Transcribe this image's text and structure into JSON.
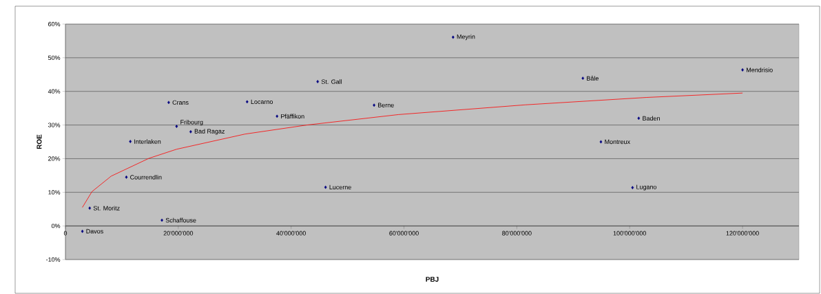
{
  "chart_data": {
    "type": "scatter",
    "xlabel": "PBJ",
    "ylabel": "ROE",
    "xlim": [
      0,
      130000000
    ],
    "ylim": [
      -10,
      60
    ],
    "xticks": [
      0,
      {
        "value": 20000000,
        "label": "20'000'000"
      },
      {
        "value": 40000000,
        "label": "40'000'000"
      },
      {
        "value": 60000000,
        "label": "60'000'000"
      },
      {
        "value": 80000000,
        "label": "80'000'000"
      },
      {
        "value": 100000000,
        "label": "100'000'000"
      },
      {
        "value": 120000000,
        "label": "120'000'000"
      }
    ],
    "yticks": [
      {
        "value": -10,
        "label": "-10%"
      },
      {
        "value": 0,
        "label": "0%"
      },
      {
        "value": 10,
        "label": "10%"
      },
      {
        "value": 20,
        "label": "20%"
      },
      {
        "value": 30,
        "label": "30%"
      },
      {
        "value": 40,
        "label": "40%"
      },
      {
        "value": 50,
        "label": "50%"
      },
      {
        "value": 60,
        "label": "60%"
      }
    ],
    "grid": "y",
    "marker": "diamond",
    "series": [
      {
        "color": "#000080",
        "x": [
          3000000,
          4300000,
          17100000,
          10800000,
          11500000,
          18300000,
          19700000,
          22200000,
          32200000,
          37500000,
          44700000,
          46100000,
          54700000,
          68700000,
          91700000,
          120000000,
          101600000,
          94900000,
          100500000
        ],
        "values": [
          -1.6,
          5.3,
          1.7,
          14.5,
          25.1,
          36.7,
          29.6,
          28.0,
          36.9,
          32.6,
          42.9,
          11.5,
          35.9,
          56.1,
          43.9,
          46.4,
          32.0,
          25.0,
          11.4
        ]
      },
      {
        "type": "line",
        "color": "#ff0000",
        "marker": "none",
        "x": [
          3000000,
          4700000,
          8100000,
          14800000,
          19700000,
          31800000,
          42800000,
          59000000,
          81500000,
          103000000,
          120000000
        ],
        "values": [
          5.5,
          10.2,
          14.8,
          20.1,
          22.8,
          27.3,
          30.0,
          33.1,
          36.0,
          38.2,
          39.5
        ]
      }
    ],
    "annotations": [
      {
        "text": "Davos",
        "x": 3000000,
        "y": -1.6
      },
      {
        "text": "St. Moritz",
        "x": 4300000,
        "y": 5.3
      },
      {
        "text": "Schaffouse",
        "x": 17100000,
        "y": 1.7
      },
      {
        "text": "Courrendlin",
        "x": 10800000,
        "y": 14.5
      },
      {
        "text": "Interlaken",
        "x": 11500000,
        "y": 25.1
      },
      {
        "text": "Crans",
        "x": 18300000,
        "y": 36.7
      },
      {
        "text": "Fribourg",
        "x": 19700000,
        "y": 29.6
      },
      {
        "text": "Bad Ragaz",
        "x": 22200000,
        "y": 28.0
      },
      {
        "text": "Locarno",
        "x": 32200000,
        "y": 36.9
      },
      {
        "text": "Pfäffikon",
        "x": 37500000,
        "y": 32.6
      },
      {
        "text": "St. Gall",
        "x": 44700000,
        "y": 42.9
      },
      {
        "text": "Lucerne",
        "x": 46100000,
        "y": 11.5
      },
      {
        "text": "Berne",
        "x": 54700000,
        "y": 35.9
      },
      {
        "text": "Meyrin",
        "x": 68700000,
        "y": 56.1
      },
      {
        "text": "Bâle",
        "x": 91700000,
        "y": 43.9
      },
      {
        "text": "Mendrisio",
        "x": 120000000,
        "y": 46.4
      },
      {
        "text": "Baden",
        "x": 101600000,
        "y": 32.0
      },
      {
        "text": "Montreux",
        "x": 94900000,
        "y": 25.0
      },
      {
        "text": "Lugano",
        "x": 100500000,
        "y": 11.4
      }
    ]
  }
}
